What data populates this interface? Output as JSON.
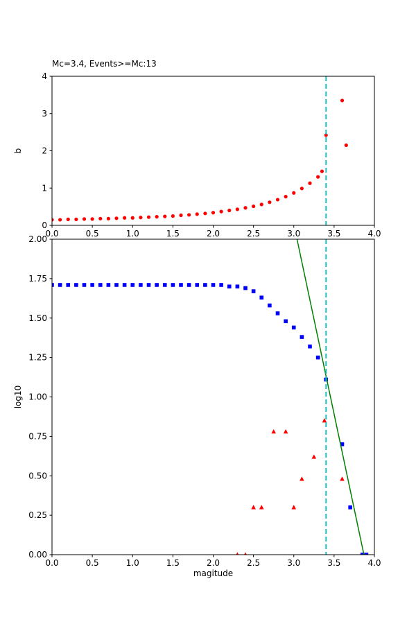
{
  "figure": {
    "background": "#ffffff"
  },
  "colors": {
    "b_value_points": "#ff0000",
    "cumulative_points": "#0000ff",
    "bin_count_points": "#ff0000",
    "fit_line": "#008000",
    "mc_line": "#00bfbf",
    "axis": "#000000"
  },
  "chart_data": [
    {
      "id": "b-value-plot",
      "type": "scatter",
      "title": "Mc=3.4, Events>=Mc:13",
      "xlabel": "",
      "ylabel": "b",
      "xlim": [
        0,
        4
      ],
      "ylim": [
        0,
        4
      ],
      "grid": false,
      "legend": "none",
      "xtick_values": [
        0,
        0.5,
        1,
        1.5,
        2,
        2.5,
        3,
        3.5,
        4
      ],
      "xtick_labels": [
        "0.0",
        "0.5",
        "1.0",
        "1.5",
        "2.0",
        "2.5",
        "3.0",
        "3.5",
        "4.0"
      ],
      "ytick_values": [
        0,
        1,
        2,
        3,
        4
      ],
      "ytick_labels": [
        "0",
        "1",
        "2",
        "3",
        "4"
      ],
      "vline": {
        "x": 3.4,
        "color": "#00bfbf",
        "style": "dashed"
      },
      "series": [
        {
          "name": "b-value",
          "marker": "circle",
          "color": "#ff0000",
          "points": [
            [
              0.0,
              0.15
            ],
            [
              0.1,
              0.15
            ],
            [
              0.2,
              0.16
            ],
            [
              0.3,
              0.16
            ],
            [
              0.4,
              0.17
            ],
            [
              0.5,
              0.17
            ],
            [
              0.6,
              0.18
            ],
            [
              0.7,
              0.18
            ],
            [
              0.8,
              0.19
            ],
            [
              0.9,
              0.2
            ],
            [
              1.0,
              0.2
            ],
            [
              1.1,
              0.21
            ],
            [
              1.2,
              0.22
            ],
            [
              1.3,
              0.23
            ],
            [
              1.4,
              0.24
            ],
            [
              1.5,
              0.25
            ],
            [
              1.6,
              0.27
            ],
            [
              1.7,
              0.28
            ],
            [
              1.8,
              0.3
            ],
            [
              1.9,
              0.32
            ],
            [
              2.0,
              0.34
            ],
            [
              2.1,
              0.37
            ],
            [
              2.2,
              0.4
            ],
            [
              2.3,
              0.43
            ],
            [
              2.4,
              0.47
            ],
            [
              2.5,
              0.51
            ],
            [
              2.6,
              0.56
            ],
            [
              2.7,
              0.62
            ],
            [
              2.8,
              0.69
            ],
            [
              2.9,
              0.77
            ],
            [
              3.0,
              0.87
            ],
            [
              3.1,
              0.99
            ],
            [
              3.2,
              1.13
            ],
            [
              3.3,
              1.3
            ],
            [
              3.35,
              1.45
            ],
            [
              3.4,
              2.42
            ],
            [
              3.6,
              3.35
            ],
            [
              3.65,
              2.15
            ]
          ]
        }
      ]
    },
    {
      "id": "fmd-plot",
      "type": "scatter",
      "title": "",
      "xlabel": "magitude",
      "ylabel": "log10",
      "xlim": [
        0,
        4
      ],
      "ylim": [
        0,
        2
      ],
      "grid": false,
      "legend": "none",
      "xtick_values": [
        0,
        0.5,
        1,
        1.5,
        2,
        2.5,
        3,
        3.5,
        4
      ],
      "xtick_labels": [
        "0.0",
        "0.5",
        "1.0",
        "1.5",
        "2.0",
        "2.5",
        "3.0",
        "3.5",
        "4.0"
      ],
      "ytick_values": [
        0,
        0.25,
        0.5,
        0.75,
        1,
        1.25,
        1.5,
        1.75,
        2
      ],
      "ytick_labels": [
        "0.00",
        "0.25",
        "0.50",
        "0.75",
        "1.00",
        "1.25",
        "1.50",
        "1.75",
        "2.00"
      ],
      "vline": {
        "x": 3.4,
        "color": "#00bfbf",
        "style": "dashed"
      },
      "series": [
        {
          "name": "cumulative-count",
          "marker": "square",
          "color": "#0000ff",
          "points": [
            [
              0.0,
              1.71
            ],
            [
              0.1,
              1.71
            ],
            [
              0.2,
              1.71
            ],
            [
              0.3,
              1.71
            ],
            [
              0.4,
              1.71
            ],
            [
              0.5,
              1.71
            ],
            [
              0.6,
              1.71
            ],
            [
              0.7,
              1.71
            ],
            [
              0.8,
              1.71
            ],
            [
              0.9,
              1.71
            ],
            [
              1.0,
              1.71
            ],
            [
              1.1,
              1.71
            ],
            [
              1.2,
              1.71
            ],
            [
              1.3,
              1.71
            ],
            [
              1.4,
              1.71
            ],
            [
              1.5,
              1.71
            ],
            [
              1.6,
              1.71
            ],
            [
              1.7,
              1.71
            ],
            [
              1.8,
              1.71
            ],
            [
              1.9,
              1.71
            ],
            [
              2.0,
              1.71
            ],
            [
              2.1,
              1.71
            ],
            [
              2.2,
              1.7
            ],
            [
              2.3,
              1.7
            ],
            [
              2.4,
              1.69
            ],
            [
              2.5,
              1.67
            ],
            [
              2.6,
              1.63
            ],
            [
              2.7,
              1.58
            ],
            [
              2.8,
              1.53
            ],
            [
              2.9,
              1.48
            ],
            [
              3.0,
              1.44
            ],
            [
              3.1,
              1.38
            ],
            [
              3.2,
              1.32
            ],
            [
              3.3,
              1.25
            ],
            [
              3.4,
              1.11
            ],
            [
              3.6,
              0.7
            ],
            [
              3.7,
              0.3
            ],
            [
              3.85,
              0.0
            ],
            [
              3.9,
              0.0
            ]
          ]
        },
        {
          "name": "bin-count",
          "marker": "triangle",
          "color": "#ff0000",
          "points": [
            [
              2.3,
              0.0
            ],
            [
              2.4,
              0.0
            ],
            [
              2.5,
              0.3
            ],
            [
              2.6,
              0.3
            ],
            [
              2.75,
              0.78
            ],
            [
              2.9,
              0.78
            ],
            [
              3.0,
              0.3
            ],
            [
              3.1,
              0.48
            ],
            [
              3.25,
              0.62
            ],
            [
              3.38,
              0.85
            ],
            [
              3.6,
              0.48
            ]
          ]
        },
        {
          "name": "gr-fit-line",
          "marker": "line",
          "color": "#008000",
          "points": [
            [
              3.04,
              2.0
            ],
            [
              3.87,
              0.0
            ]
          ]
        }
      ]
    }
  ]
}
